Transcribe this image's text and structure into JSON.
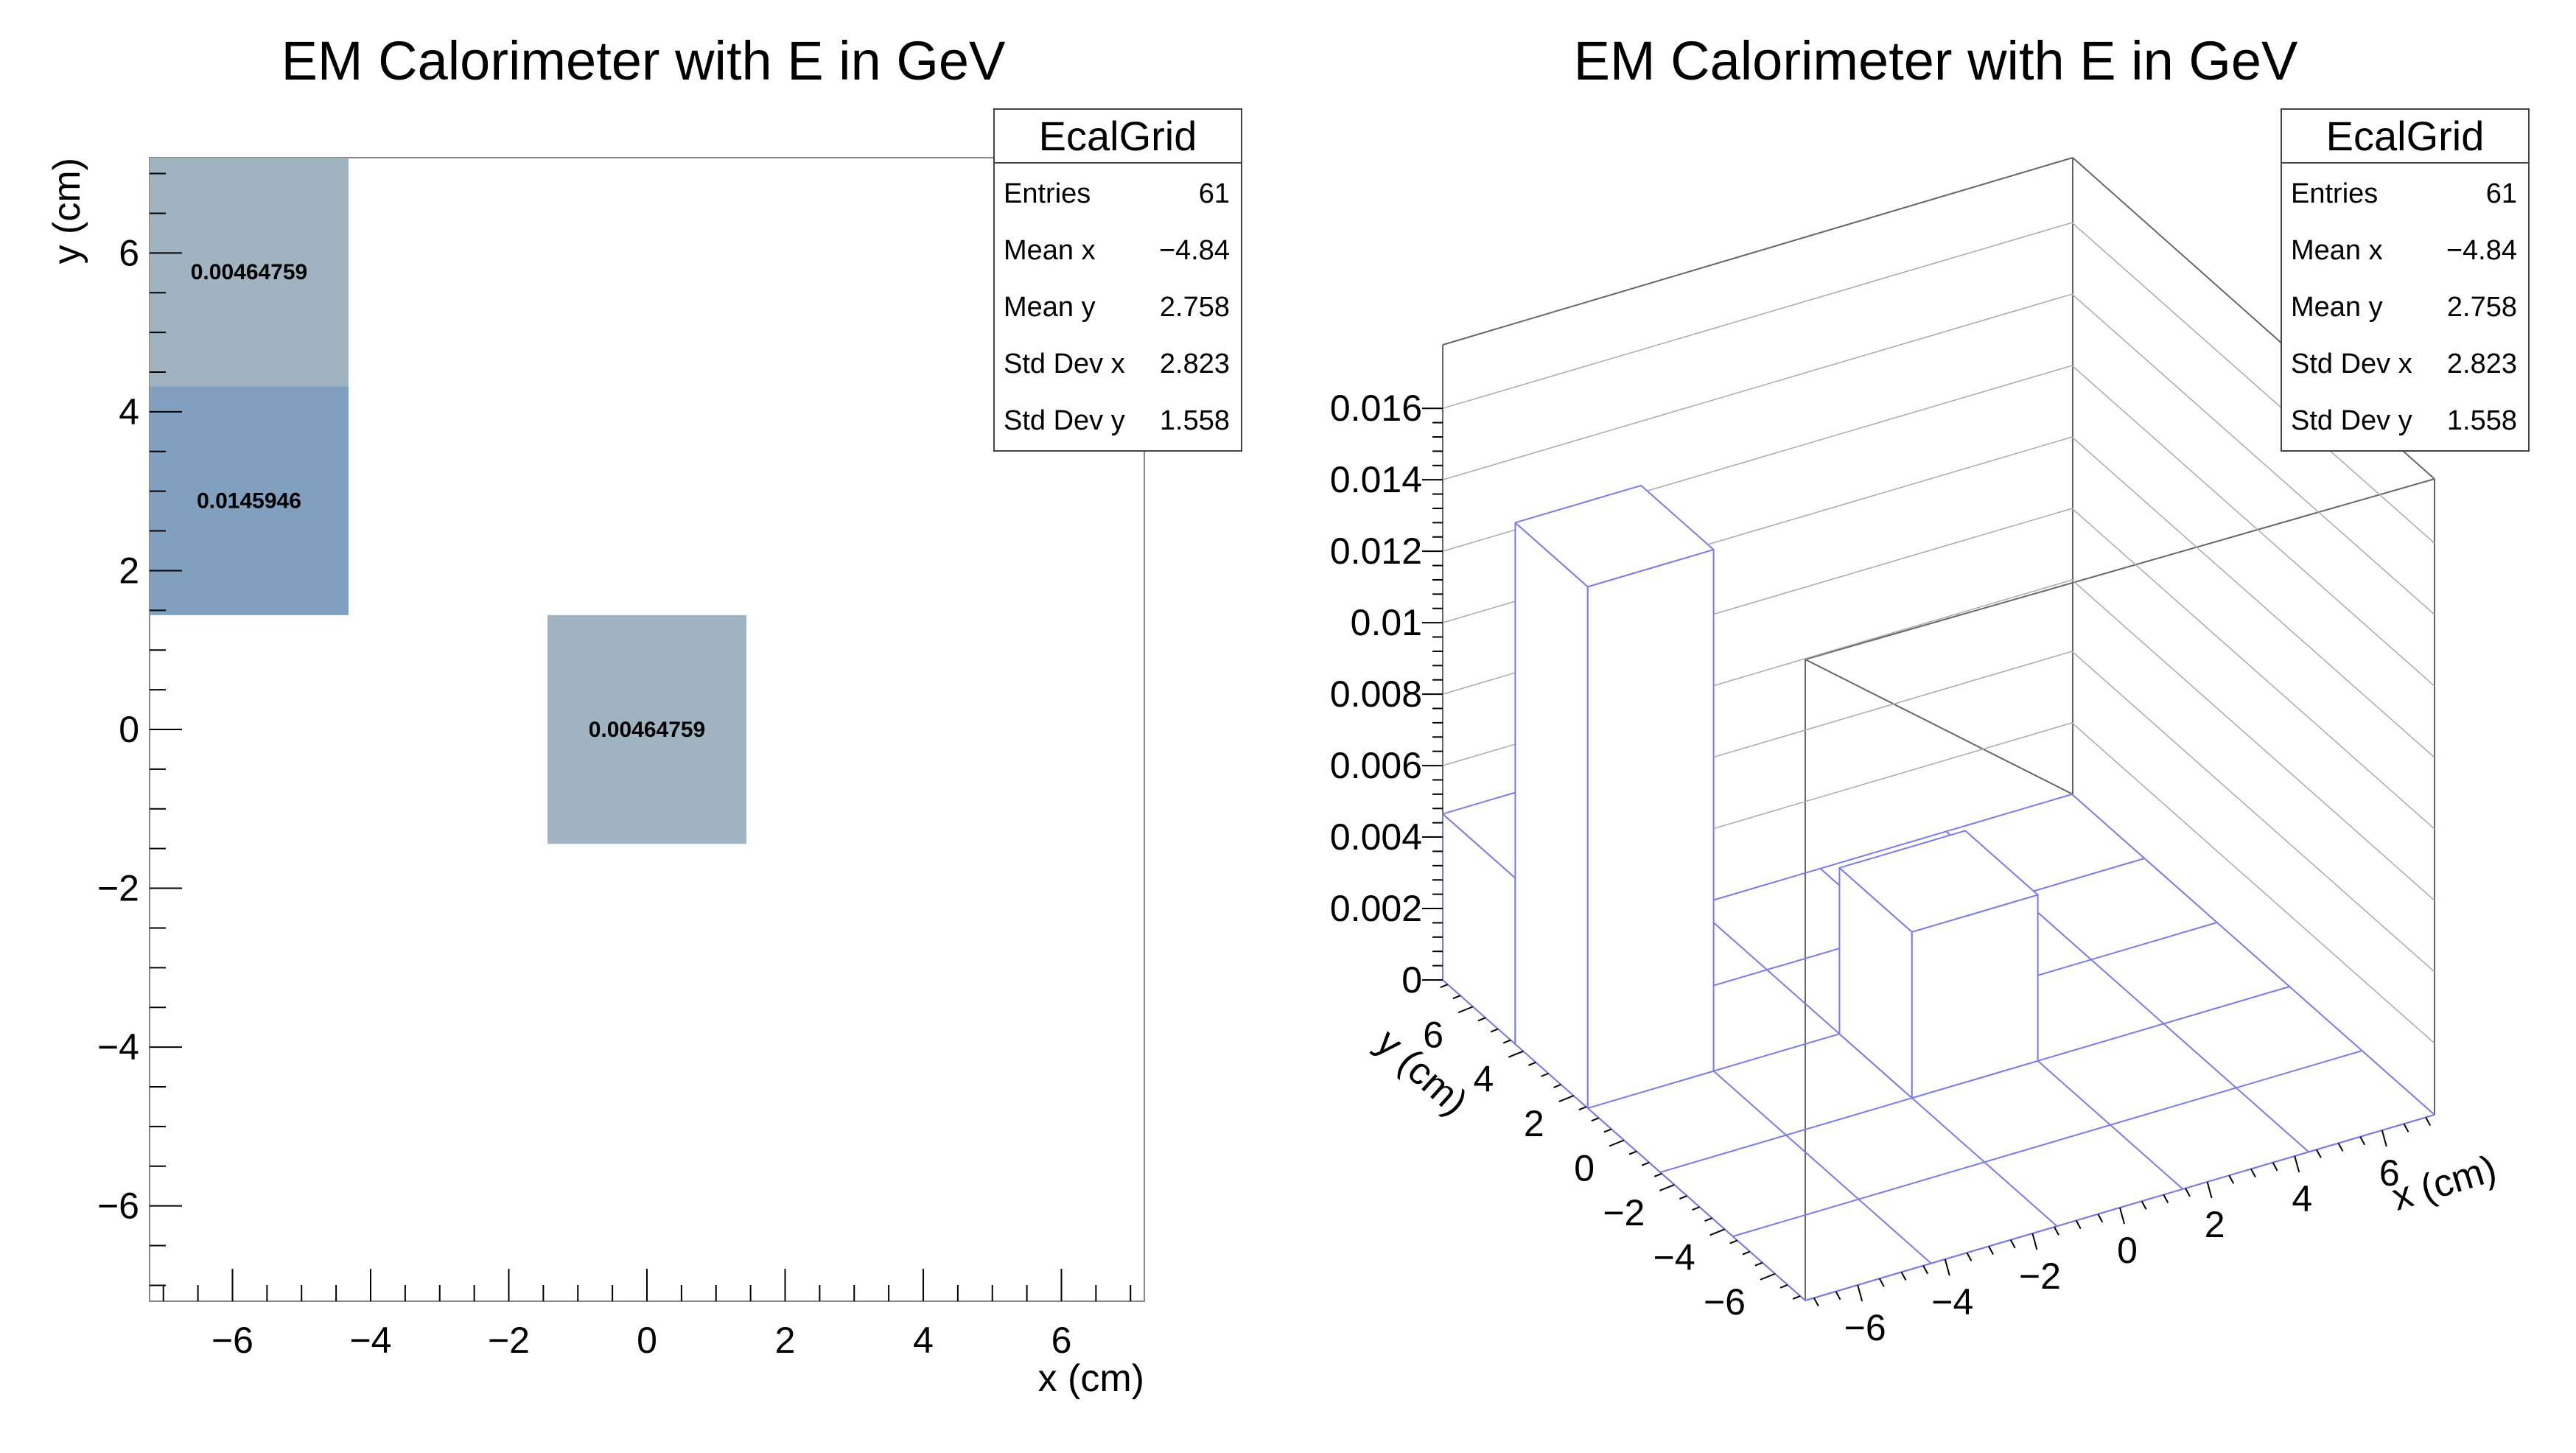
{
  "chart_data": [
    {
      "type": "heatmap",
      "title": "EM Calorimeter with E in GeV",
      "xlabel": "x (cm)",
      "ylabel": "y (cm)",
      "xlim": [
        -7.2,
        7.2
      ],
      "ylim": [
        -7.2,
        7.2
      ],
      "xticks": [
        "−6",
        "−4",
        "−2",
        "0",
        "2",
        "4",
        "6"
      ],
      "yticks": [
        "−6",
        "−4",
        "−2",
        "0",
        "2",
        "4",
        "6"
      ],
      "xtick_values": [
        -6,
        -4,
        -2,
        0,
        2,
        4,
        6
      ],
      "ytick_values": [
        -6,
        -4,
        -2,
        0,
        2,
        4,
        6
      ],
      "cells": [
        {
          "x0": -7.2,
          "x1": -4.32,
          "y0": 4.32,
          "y1": 7.2,
          "value": 0.00464759,
          "label": "0.00464759",
          "color": "#9fb3c0"
        },
        {
          "x0": -7.2,
          "x1": -4.32,
          "y0": 1.44,
          "y1": 4.32,
          "value": 0.0145946,
          "label": "0.0145946",
          "color": "#819fbf"
        },
        {
          "x0": -1.44,
          "x1": 1.44,
          "y0": -1.44,
          "y1": 1.44,
          "value": 0.00464759,
          "label": "0.00464759",
          "color": "#9fb3c0"
        }
      ],
      "stats": {
        "name": "EcalGrid",
        "rows": [
          {
            "label": "Entries",
            "value": "61"
          },
          {
            "label": "Mean x",
            "value": "−4.84"
          },
          {
            "label": "Mean y",
            "value": "2.758"
          },
          {
            "label": "Std Dev x",
            "value": "2.823"
          },
          {
            "label": "Std Dev y",
            "value": "1.558"
          }
        ]
      }
    },
    {
      "type": "bar",
      "variant": "lego-3d",
      "title": "EM Calorimeter with E in GeV",
      "xlabel": "x (cm)",
      "ylabel": "y (cm)",
      "zticks": [
        "0",
        "0.002",
        "0.004",
        "0.006",
        "0.008",
        "0.01",
        "0.012",
        "0.014",
        "0.016"
      ],
      "xticks": [
        "−6",
        "−4",
        "−2",
        "0",
        "2",
        "4",
        "6"
      ],
      "yticks": [
        "−6",
        "−4",
        "−2",
        "0",
        "2",
        "4",
        "6"
      ],
      "zlim": [
        0,
        0.016
      ],
      "bars": [
        {
          "x0": -7.2,
          "x1": -4.32,
          "y0": 4.32,
          "y1": 7.2,
          "value": 0.00464759
        },
        {
          "x0": -7.2,
          "x1": -4.32,
          "y0": 1.44,
          "y1": 4.32,
          "value": 0.0145946
        },
        {
          "x0": -1.44,
          "x1": 1.44,
          "y0": -1.44,
          "y1": 1.44,
          "value": 0.00464759
        }
      ],
      "colors": {
        "bar_edge": "#7b7be6",
        "frame": "#666666",
        "grid": "#aaaaaa"
      },
      "stats": {
        "name": "EcalGrid",
        "rows": [
          {
            "label": "Entries",
            "value": "61"
          },
          {
            "label": "Mean x",
            "value": "−4.84"
          },
          {
            "label": "Mean y",
            "value": "2.758"
          },
          {
            "label": "Std Dev x",
            "value": "2.823"
          },
          {
            "label": "Std Dev y",
            "value": "1.558"
          }
        ]
      }
    }
  ]
}
